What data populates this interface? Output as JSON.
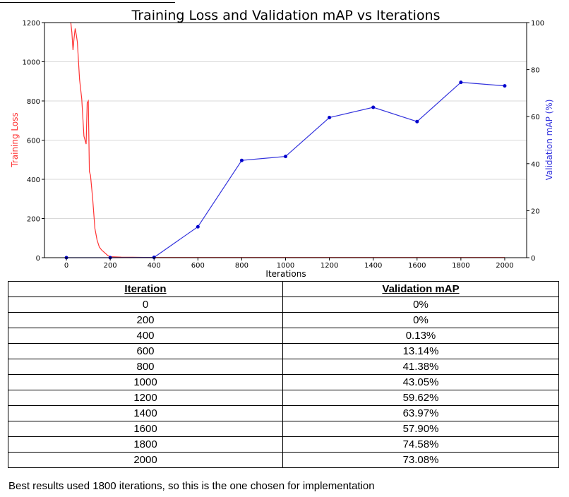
{
  "chart_data": {
    "type": "line",
    "title": "Training Loss and Validation mAP vs Iterations",
    "xlabel": "Iterations",
    "ylabel_left": "Training Loss",
    "ylabel_right": "Validation mAP (%)",
    "xlim": [
      -100,
      2100
    ],
    "ylim_left": [
      0,
      1200
    ],
    "ylim_right": [
      0,
      100
    ],
    "xticks": [
      0,
      200,
      400,
      600,
      800,
      1000,
      1200,
      1400,
      1600,
      1800,
      2000
    ],
    "yticks_left": [
      0,
      200,
      400,
      600,
      800,
      1000,
      1200
    ],
    "yticks_right": [
      0,
      20,
      40,
      60,
      80,
      100
    ],
    "grid": true,
    "series": [
      {
        "name": "Training Loss",
        "axis": "left",
        "color": "#ff3333",
        "x": [
          20,
          25,
          30,
          35,
          40,
          45,
          50,
          60,
          70,
          80,
          90,
          95,
          100,
          105,
          110,
          120,
          130,
          140,
          150,
          160,
          170,
          180,
          190,
          200,
          250,
          300,
          400,
          500,
          1000,
          1500,
          2000
        ],
        "y": [
          1200,
          1150,
          1060,
          1120,
          1170,
          1140,
          1100,
          910,
          810,
          620,
          580,
          790,
          800,
          440,
          420,
          300,
          150,
          90,
          55,
          40,
          30,
          20,
          10,
          5,
          3,
          2,
          1,
          1,
          1,
          1,
          1
        ]
      },
      {
        "name": "Validation mAP",
        "axis": "right",
        "color": "#3333dd",
        "marker": "dot",
        "x": [
          0,
          200,
          400,
          600,
          800,
          1000,
          1200,
          1400,
          1600,
          1800,
          2000
        ],
        "y": [
          0,
          0,
          0.13,
          13.14,
          41.38,
          43.05,
          59.62,
          63.97,
          57.9,
          74.58,
          73.08
        ]
      }
    ]
  },
  "table": {
    "headers": [
      "Iteration",
      "Validation mAP"
    ],
    "rows": [
      [
        "0",
        "0%"
      ],
      [
        "200",
        "0%"
      ],
      [
        "400",
        "0.13%"
      ],
      [
        "600",
        "13.14%"
      ],
      [
        "800",
        "41.38%"
      ],
      [
        "1000",
        "43.05%"
      ],
      [
        "1200",
        "59.62%"
      ],
      [
        "1400",
        "63.97%"
      ],
      [
        "1600",
        "57.90%"
      ],
      [
        "1800",
        "74.58%"
      ],
      [
        "2000",
        "73.08%"
      ]
    ]
  },
  "caption": "Best results used 1800 iterations, so this is the one chosen for implementation"
}
